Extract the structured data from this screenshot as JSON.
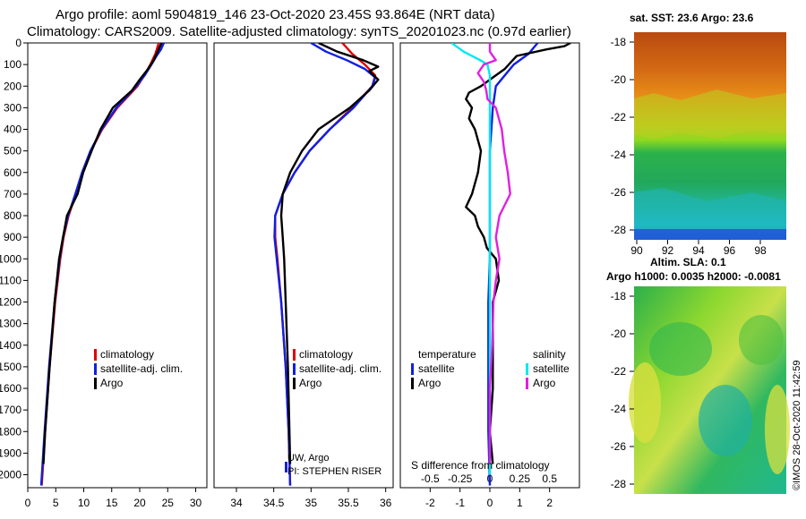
{
  "header": {
    "title_line1": "Argo profile: aoml 5904819_146 23-Oct-2020 23.45S 93.864E (NRT data)",
    "title_line2": "Climatology: CARS2009. Satellite-adjusted climatology: synTS_20201023.nc (0.97d earlier)"
  },
  "colors": {
    "climatology": "#e00000",
    "satellite_adj": "#1020e0",
    "argo": "#000000",
    "satellite_salinity": "#00e8ee",
    "argo_salinity": "#e020e0"
  },
  "chart_data": [
    {
      "id": "temperature",
      "type": "line",
      "ylabel": "depth",
      "ylim": [
        0,
        2060
      ],
      "xlim": [
        0,
        32
      ],
      "xticks": [
        0,
        5,
        10,
        15,
        20,
        25,
        30
      ],
      "yticks": [
        0,
        100,
        200,
        300,
        400,
        500,
        600,
        700,
        800,
        900,
        1000,
        1100,
        1200,
        1300,
        1400,
        1500,
        1600,
        1700,
        1800,
        1900,
        2000
      ],
      "legend": [
        "climatology",
        "satellite-adj. clim.",
        "Argo"
      ],
      "series": [
        {
          "name": "climatology",
          "color": "#e00000",
          "depth": [
            0,
            50,
            100,
            150,
            200,
            300,
            400,
            500,
            600,
            700,
            800,
            900,
            1000,
            1200,
            1500,
            1800,
            2050
          ],
          "values": [
            23.4,
            22.8,
            21.9,
            20.8,
            19.6,
            16.0,
            13.3,
            11.3,
            9.8,
            8.6,
            7.3,
            6.4,
            5.8,
            4.9,
            3.9,
            3.1,
            2.5
          ]
        },
        {
          "name": "satellite-adj. clim.",
          "color": "#1020e0",
          "depth": [
            0,
            30,
            60,
            100,
            150,
            200,
            300,
            400,
            500,
            600,
            700,
            800,
            900,
            1000,
            1200,
            1500,
            1800,
            2050
          ],
          "values": [
            24.3,
            23.8,
            23.0,
            22.1,
            20.9,
            19.4,
            15.8,
            13.2,
            11.2,
            9.7,
            8.5,
            7.2,
            6.3,
            5.7,
            4.8,
            3.8,
            3.0,
            2.4
          ]
        },
        {
          "name": "Argo",
          "color": "#000000",
          "depth": [
            0,
            40,
            80,
            120,
            170,
            220,
            300,
            400,
            500,
            600,
            700,
            800,
            900,
            1000,
            1200,
            1500,
            1800,
            1950
          ],
          "values": [
            23.9,
            23.2,
            22.5,
            21.5,
            20.0,
            18.6,
            15.2,
            13.0,
            11.4,
            9.9,
            8.9,
            7.0,
            6.3,
            5.6,
            4.8,
            3.9,
            3.1,
            2.8
          ]
        }
      ]
    },
    {
      "id": "salinity",
      "type": "line",
      "ylim": [
        0,
        2060
      ],
      "xlim": [
        33.7,
        36.1
      ],
      "xticks": [
        34,
        34.5,
        35,
        35.5,
        36
      ],
      "legend": [
        "climatology",
        "satellite-adj. clim.",
        "Argo"
      ],
      "annotations": [
        "UW, Argo",
        "PI: STEPHEN RISER"
      ],
      "series": [
        {
          "name": "climatology",
          "color": "#e00000",
          "depth": [
            0,
            50,
            100,
            150,
            200,
            300,
            400,
            500,
            600,
            700,
            800,
            900,
            1000,
            1200,
            1500,
            1800,
            2050
          ],
          "values": [
            35.42,
            35.55,
            35.72,
            35.86,
            35.82,
            35.55,
            35.25,
            34.98,
            34.78,
            34.62,
            34.52,
            34.52,
            34.55,
            34.6,
            34.66,
            34.7,
            34.72
          ]
        },
        {
          "name": "satellite-adj. clim.",
          "color": "#1020e0",
          "depth": [
            0,
            40,
            80,
            120,
            160,
            200,
            300,
            400,
            500,
            600,
            700,
            800,
            900,
            1000,
            1200,
            1500,
            1800,
            2050
          ],
          "values": [
            35.0,
            35.2,
            35.48,
            35.72,
            35.86,
            35.82,
            35.57,
            35.25,
            34.98,
            34.78,
            34.62,
            34.52,
            34.51,
            34.54,
            34.6,
            34.66,
            34.7,
            34.72
          ]
        },
        {
          "name": "Argo",
          "color": "#000000",
          "depth": [
            0,
            40,
            80,
            110,
            130,
            170,
            220,
            300,
            400,
            500,
            600,
            700,
            800,
            900,
            1000,
            1200,
            1500,
            1800,
            1950
          ],
          "values": [
            35.1,
            35.35,
            35.7,
            35.9,
            35.78,
            35.9,
            35.78,
            35.52,
            35.1,
            34.88,
            34.72,
            34.62,
            34.6,
            34.62,
            34.64,
            34.66,
            34.69,
            34.71,
            34.72
          ]
        }
      ]
    },
    {
      "id": "difference",
      "type": "line",
      "ylim": [
        0,
        2060
      ],
      "xlim": [
        -3.0,
        3.0
      ],
      "xticks": [
        -2,
        -1,
        0,
        1,
        2
      ],
      "xticks_s": [
        -0.5,
        -0.25,
        0,
        0.25,
        0.5
      ],
      "xticks_s_labels": [
        "-0.5",
        "-0.25",
        "0",
        "0.25",
        "0.5"
      ],
      "xlabel": "S difference from climatology",
      "legend_temperature": {
        "heading": "temperature",
        "items": [
          "satellite",
          "Argo"
        ]
      },
      "legend_salinity": {
        "heading": "salinity",
        "items": [
          "satellite",
          "Argo"
        ]
      },
      "series": [
        {
          "name": "temperature satellite",
          "color": "#1020e0",
          "depth": [
            0,
            50,
            100,
            150,
            200,
            300,
            400,
            500,
            600,
            700,
            800,
            900,
            1000,
            1200,
            1500,
            1800,
            2050
          ],
          "values": [
            1.6,
            1.3,
            0.8,
            0.5,
            0.2,
            0.1,
            0.05,
            0,
            0,
            0,
            0,
            0,
            0,
            -0.05,
            -0.05,
            -0.05,
            0
          ]
        },
        {
          "name": "temperature Argo",
          "color": "#000000",
          "depth": [
            0,
            15,
            30,
            60,
            90,
            120,
            160,
            200,
            230,
            260,
            300,
            350,
            400,
            500,
            600,
            700,
            760,
            800,
            850,
            900,
            950,
            1000,
            1100,
            1200,
            1400,
            1600,
            1800,
            1950
          ],
          "values": [
            2.7,
            2.5,
            1.9,
            0.9,
            0.7,
            0.5,
            0.1,
            -0.3,
            -0.7,
            -0.8,
            -0.6,
            -0.7,
            -0.5,
            -0.3,
            -0.4,
            -0.6,
            -0.8,
            -0.5,
            -0.4,
            -0.2,
            -0.1,
            0.2,
            0.3,
            0.1,
            0.1,
            0.1,
            0.0,
            0.1
          ]
        },
        {
          "name": "salinity satellite",
          "color": "#00e8ee",
          "depth": [
            0,
            40,
            80,
            100,
            150,
            200,
            300,
            500,
            700,
            1000,
            1300,
            1600,
            2000
          ],
          "values": [
            -0.32,
            -0.22,
            -0.08,
            -0.02,
            0,
            0,
            0,
            0,
            0,
            0,
            0,
            0,
            0
          ]
        },
        {
          "name": "salinity Argo",
          "color": "#e020e0",
          "depth": [
            0,
            40,
            80,
            100,
            140,
            180,
            220,
            260,
            300,
            400,
            500,
            600,
            700,
            800,
            900,
            1000,
            1100,
            1200,
            1400,
            1600,
            1800,
            1950
          ],
          "values": [
            0.0,
            0.0,
            0.05,
            -0.05,
            -0.1,
            -0.05,
            -0.03,
            -0.02,
            0.05,
            0.1,
            0.12,
            0.15,
            0.17,
            0.08,
            0.05,
            0.08,
            0.05,
            0.03,
            0.02,
            0.0,
            0.0,
            0.0
          ]
        }
      ]
    }
  ],
  "maps": {
    "sst": {
      "title": "sat. SST: 23.6 Argo: 23.6",
      "lat_ticks": [
        "-18",
        "-20",
        "-22",
        "-24",
        "-26",
        "-28"
      ],
      "lon_ticks": [
        "90",
        "92",
        "94",
        "96",
        "98"
      ]
    },
    "sla": {
      "title_line1": "Altim. SLA: 0.1",
      "title_line2": "Argo h1000: 0.0035 h2000: -0.0081",
      "lat_ticks": [
        "-18",
        "-20",
        "-22",
        "-24",
        "-26",
        "-28"
      ]
    }
  },
  "footer": {
    "credit": "©IMOS 28-Oct-2020 11:42:59"
  }
}
